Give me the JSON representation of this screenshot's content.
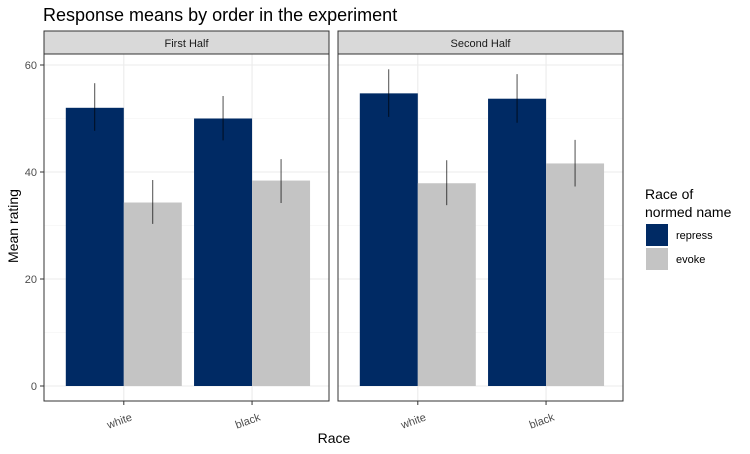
{
  "chart_data": {
    "type": "bar",
    "title": "Response means by order in the experiment",
    "xlabel": "Race",
    "ylabel": "Mean rating",
    "ylim": [
      0,
      62
    ],
    "yticks": [
      0,
      20,
      40,
      60
    ],
    "categories": [
      "white",
      "black"
    ],
    "legend": {
      "title_lines": [
        "Race of",
        "normed name"
      ],
      "position": "right"
    },
    "series": [
      {
        "name": "repress",
        "color": "#002a64"
      },
      {
        "name": "evoke",
        "color": "#c4c4c4"
      }
    ],
    "panels": [
      {
        "label": "First Half",
        "values": {
          "repress": [
            52.0,
            50.0
          ],
          "evoke": [
            34.3,
            38.4
          ]
        },
        "error_low": {
          "repress": [
            47.7,
            45.9
          ],
          "evoke": [
            30.3,
            34.2
          ]
        },
        "error_high": {
          "repress": [
            56.6,
            54.2
          ],
          "evoke": [
            38.5,
            42.4
          ]
        }
      },
      {
        "label": "Second Half",
        "values": {
          "repress": [
            54.7,
            53.7
          ],
          "evoke": [
            37.9,
            41.6
          ]
        },
        "error_low": {
          "repress": [
            50.3,
            49.2
          ],
          "evoke": [
            33.8,
            37.3
          ]
        },
        "error_high": {
          "repress": [
            59.2,
            58.3
          ],
          "evoke": [
            42.2,
            46.0
          ]
        }
      }
    ],
    "grid": true,
    "theme": "bw"
  }
}
